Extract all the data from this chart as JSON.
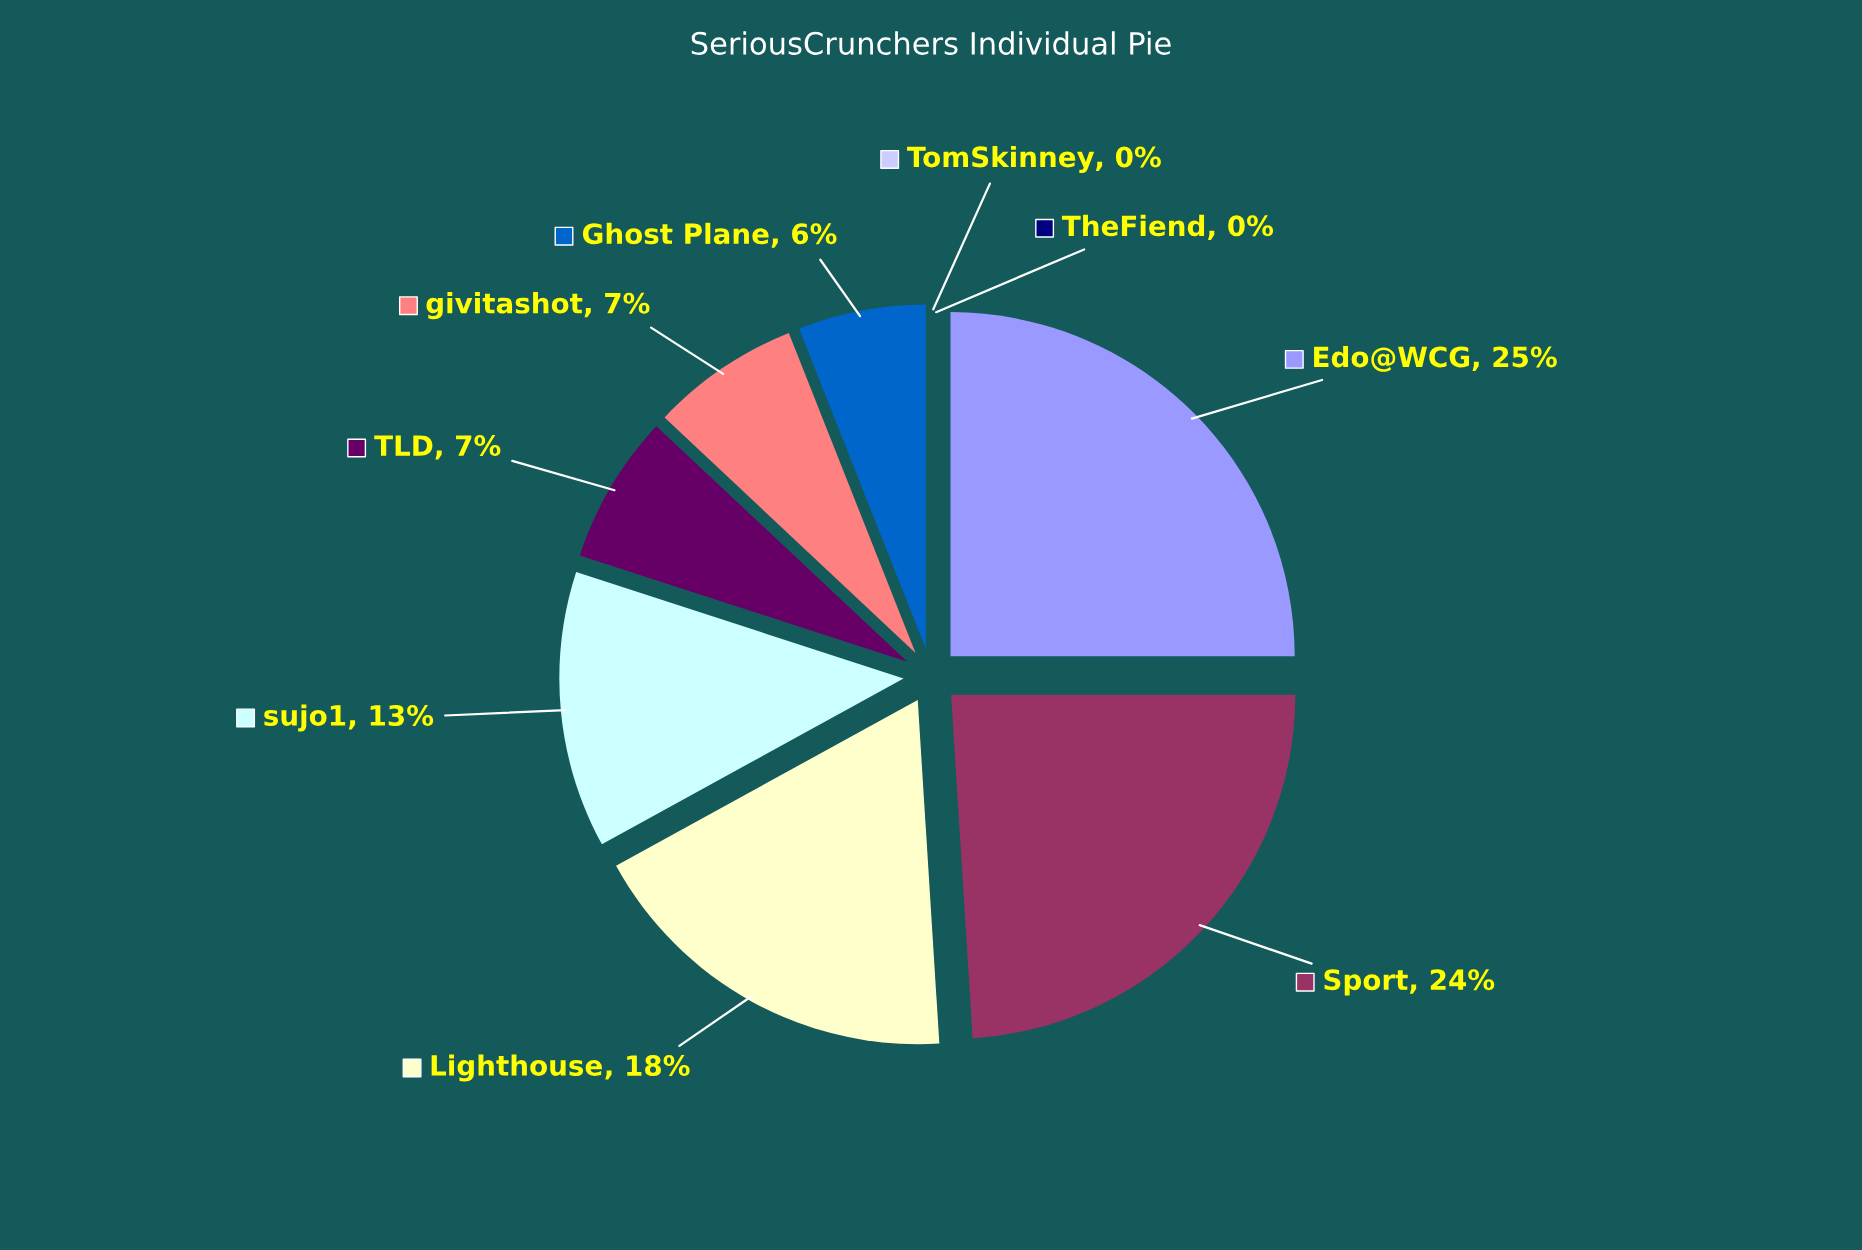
{
  "chart_data": {
    "type": "pie",
    "title": "SeriousCrunchers Individual Pie",
    "categories": [
      "Edo@WCG",
      "Sport",
      "Lighthouse",
      "sujo1",
      "TLD",
      "givitashot",
      "Ghost Plane",
      "TomSkinney",
      "TheFiend"
    ],
    "values": [
      25,
      24,
      18,
      13,
      7,
      7,
      6,
      0,
      0
    ],
    "colors": [
      "#9999ff",
      "#993366",
      "#ffffcc",
      "#ccffff",
      "#660066",
      "#ff8080",
      "#0066cc",
      "#ccccff",
      "#000080"
    ],
    "value_labels": [
      ", 25%",
      ", 24%",
      ", 18%",
      ", 13%",
      ", 7%",
      ", 7%",
      ", 6%",
      ", 0%",
      ", 0%"
    ],
    "legend": "top left"
  }
}
